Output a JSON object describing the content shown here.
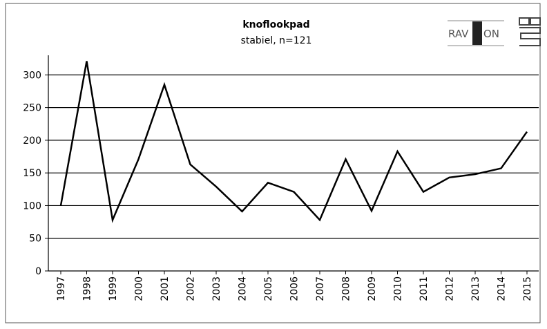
{
  "chart_data": {
    "type": "line",
    "title": "knoflookpad",
    "subtitle": "stabiel, n=121",
    "logo_left": "RAV",
    "logo_right": "ON",
    "logo_cbs": "cbs",
    "categories": [
      "1997",
      "1998",
      "1999",
      "2000",
      "2001",
      "2002",
      "2003",
      "2004",
      "2005",
      "2006",
      "2007",
      "2008",
      "2009",
      "2010",
      "2011",
      "2012",
      "2013",
      "2014",
      "2015"
    ],
    "series": [
      {
        "name": "knoflookpad",
        "color": "#000000",
        "values": [
          100,
          321,
          78,
          171,
          285,
          163,
          129,
          91,
          135,
          121,
          78,
          171,
          92,
          183,
          121,
          143,
          148,
          157,
          213
        ]
      }
    ],
    "ylim": [
      0,
      330
    ],
    "yticks": [
      0,
      50,
      100,
      150,
      200,
      250,
      300
    ],
    "grid": true
  }
}
